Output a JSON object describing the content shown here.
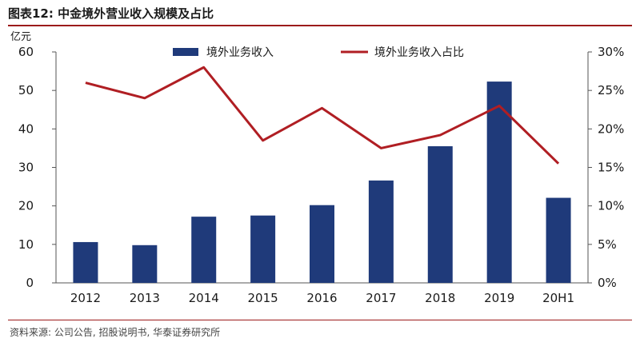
{
  "figure": {
    "title": "图表12:   中金境外营业收入规模及占比",
    "source": "资料来源: 公司公告, 招股说明书, 华泰证券研究所"
  },
  "colors": {
    "bar": "#1f3a7a",
    "line": "#b01e23",
    "rule": "#9c1a1a"
  },
  "chart_data": {
    "type": "bar",
    "categories": [
      "2012",
      "2013",
      "2014",
      "2015",
      "2016",
      "2017",
      "2018",
      "2019",
      "20H1"
    ],
    "series": [
      {
        "name": "境外业务收入",
        "type": "bar",
        "axis": "left",
        "values": [
          10.6,
          9.8,
          17.2,
          17.5,
          20.2,
          26.6,
          35.5,
          52.3,
          22.1
        ]
      },
      {
        "name": "境外业务收入占比",
        "type": "line",
        "axis": "right",
        "values": [
          0.26,
          0.24,
          0.28,
          0.185,
          0.227,
          0.175,
          0.192,
          0.23,
          0.155
        ]
      }
    ],
    "y_left": {
      "unit_label": "亿元",
      "range": [
        0,
        60
      ],
      "ticks": [
        0,
        10,
        20,
        30,
        40,
        50,
        60
      ],
      "tick_labels": [
        "0",
        "10",
        "20",
        "30",
        "40",
        "50",
        "60"
      ]
    },
    "y_right": {
      "range": [
        0,
        0.3
      ],
      "ticks": [
        0,
        0.05,
        0.1,
        0.15,
        0.2,
        0.25,
        0.3
      ],
      "tick_labels": [
        "0%",
        "5%",
        "10%",
        "15%",
        "20%",
        "25%",
        "30%"
      ]
    },
    "grid": false,
    "legend": "top"
  }
}
